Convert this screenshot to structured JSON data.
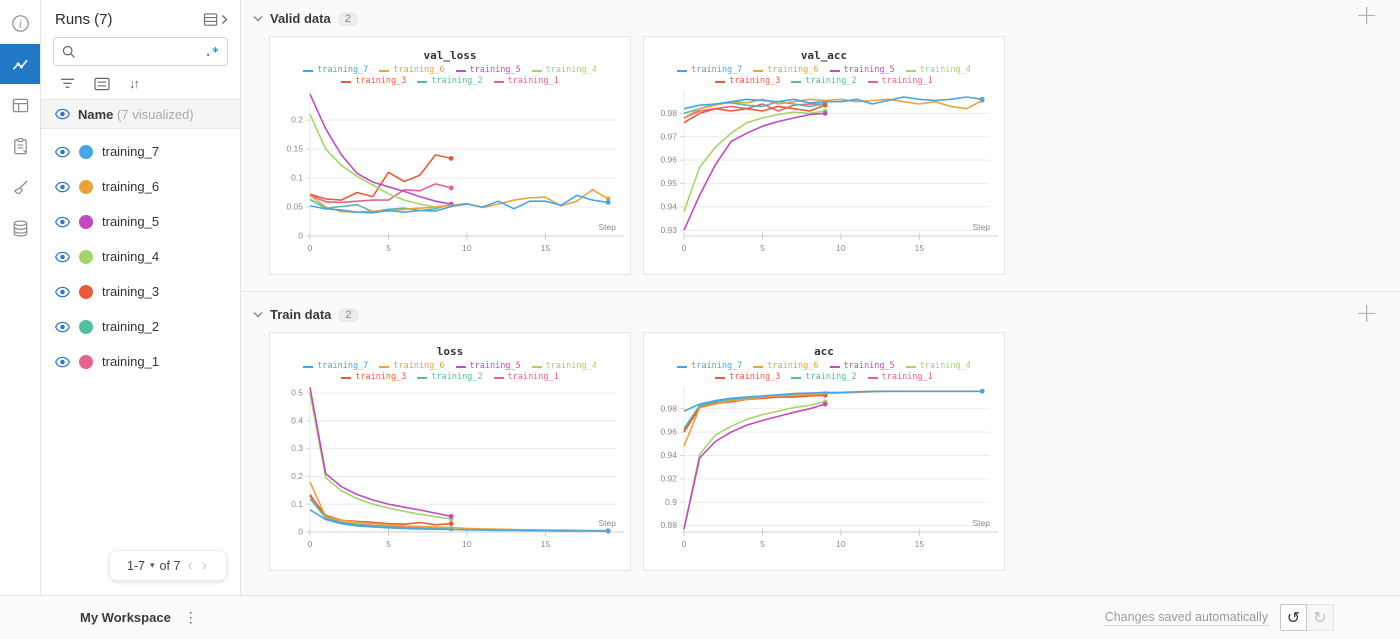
{
  "rail": {
    "items": [
      {
        "icon": "info-icon",
        "active": false
      },
      {
        "icon": "line-chart-icon",
        "active": true
      },
      {
        "icon": "table-panel-icon",
        "active": false
      },
      {
        "icon": "clipboard-icon",
        "active": false
      },
      {
        "icon": "broom-icon",
        "active": false
      },
      {
        "icon": "database-icon",
        "active": false
      }
    ]
  },
  "sidebar": {
    "title": "Runs (7)",
    "expand_icon": "runs-table-expand-icon",
    "search": {
      "value": "",
      "placeholder": "",
      "regex_label": ".*"
    },
    "toolbar_icons": [
      "filter-icon",
      "list-icon",
      "sort-icon"
    ],
    "sort_glyph": "↓↑",
    "header": {
      "name_label": "Name",
      "visualized_label": "(7 visualized)"
    },
    "runs": [
      {
        "name": "training_7",
        "color": "#48a5e3"
      },
      {
        "name": "training_6",
        "color": "#e9a33c"
      },
      {
        "name": "training_5",
        "color": "#c14bc1"
      },
      {
        "name": "training_4",
        "color": "#a3d56a"
      },
      {
        "name": "training_3",
        "color": "#e65c3c"
      },
      {
        "name": "training_2",
        "color": "#55bda2"
      },
      {
        "name": "training_1",
        "color": "#e6628d"
      }
    ],
    "pagination": {
      "range_label": "1-7",
      "caret_glyph": "▾",
      "of_label": "of 7",
      "prev_glyph": "‹",
      "next_glyph": "›"
    }
  },
  "sections": [
    {
      "title": "Valid data",
      "count": "2",
      "add_glyph": "+"
    },
    {
      "title": "Train data",
      "count": "2",
      "add_glyph": "+"
    }
  ],
  "footer": {
    "workspace_label": "My Workspace",
    "kebab_glyph": "⋮",
    "status_label": "Changes saved automatically",
    "undo_glyph": "↺",
    "redo_glyph": "↻"
  },
  "chart_data": [
    {
      "type": "line",
      "title": "val_loss",
      "xlabel": "Step",
      "xlim": [
        0,
        19.5
      ],
      "ylim": [
        0,
        0.252
      ],
      "xticks": [
        0,
        5,
        10,
        15
      ],
      "yticks": [
        0,
        0.05,
        0.1,
        0.15,
        0.2
      ],
      "grid": true,
      "legend_position": "top",
      "series": [
        {
          "name": "training_7",
          "color": "#48a5e3",
          "values": [
            0.052,
            0.047,
            0.045,
            0.041,
            0.04,
            0.044,
            0.041,
            0.044,
            0.043,
            0.051,
            0.055,
            0.05,
            0.06,
            0.047,
            0.06,
            0.06,
            0.053,
            0.07,
            0.062,
            0.058
          ]
        },
        {
          "name": "training_6",
          "color": "#e9a33c",
          "values": [
            0.07,
            0.05,
            0.042,
            0.041,
            0.043,
            0.043,
            0.046,
            0.048,
            0.05,
            0.053,
            0.056,
            0.049,
            0.055,
            0.062,
            0.066,
            0.067,
            0.052,
            0.06,
            0.08,
            0.064
          ]
        },
        {
          "name": "training_5",
          "color": "#c14bc1",
          "values": [
            0.245,
            0.185,
            0.14,
            0.108,
            0.093,
            0.085,
            0.077,
            0.068,
            0.06,
            0.055
          ]
        },
        {
          "name": "training_4",
          "color": "#a3d56a",
          "values": [
            0.21,
            0.15,
            0.122,
            0.103,
            0.088,
            0.073,
            0.062,
            0.055,
            0.05,
            0.053
          ]
        },
        {
          "name": "training_3",
          "color": "#e65c3c",
          "values": [
            0.072,
            0.064,
            0.062,
            0.075,
            0.068,
            0.11,
            0.094,
            0.105,
            0.14,
            0.134
          ]
        },
        {
          "name": "training_2",
          "color": "#55bda2",
          "values": [
            0.063,
            0.048,
            0.051,
            0.054,
            0.042,
            0.046,
            0.048,
            0.044,
            0.047,
            0.055
          ]
        },
        {
          "name": "training_1",
          "color": "#e6628d",
          "values": [
            0.07,
            0.059,
            0.058,
            0.06,
            0.062,
            0.062,
            0.08,
            0.078,
            0.09,
            0.083
          ]
        }
      ]
    },
    {
      "type": "line",
      "title": "val_acc",
      "xlabel": "Step",
      "xlim": [
        0,
        19.5
      ],
      "ylim": [
        0.9275,
        0.99
      ],
      "xticks": [
        0,
        5,
        10,
        15
      ],
      "yticks": [
        0.93,
        0.94,
        0.95,
        0.96,
        0.97,
        0.98
      ],
      "grid": true,
      "legend_position": "top",
      "series": [
        {
          "name": "training_7",
          "color": "#48a5e3",
          "values": [
            0.982,
            0.9835,
            0.984,
            0.985,
            0.986,
            0.9855,
            0.985,
            0.986,
            0.9845,
            0.985,
            0.985,
            0.986,
            0.984,
            0.9855,
            0.987,
            0.986,
            0.9855,
            0.986,
            0.987,
            0.986
          ]
        },
        {
          "name": "training_6",
          "color": "#e9a33c",
          "values": [
            0.978,
            0.982,
            0.9835,
            0.985,
            0.9845,
            0.986,
            0.984,
            0.985,
            0.986,
            0.9855,
            0.986,
            0.985,
            0.9855,
            0.986,
            0.985,
            0.984,
            0.985,
            0.983,
            0.982,
            0.9855
          ]
        },
        {
          "name": "training_5",
          "color": "#c14bc1",
          "values": [
            0.93,
            0.945,
            0.958,
            0.968,
            0.9715,
            0.9745,
            0.9765,
            0.978,
            0.9795,
            0.98
          ]
        },
        {
          "name": "training_4",
          "color": "#a3d56a",
          "values": [
            0.938,
            0.957,
            0.9655,
            0.9715,
            0.976,
            0.978,
            0.9795,
            0.9805,
            0.98,
            0.981
          ]
        },
        {
          "name": "training_3",
          "color": "#e65c3c",
          "values": [
            0.976,
            0.98,
            0.982,
            0.981,
            0.982,
            0.981,
            0.983,
            0.982,
            0.981,
            0.9835
          ]
        },
        {
          "name": "training_2",
          "color": "#55bda2",
          "values": [
            0.98,
            0.982,
            0.984,
            0.9845,
            0.9835,
            0.983,
            0.985,
            0.984,
            0.983,
            0.984
          ]
        },
        {
          "name": "training_1",
          "color": "#e6628d",
          "values": [
            0.978,
            0.981,
            0.982,
            0.983,
            0.982,
            0.984,
            0.981,
            0.9835,
            0.984,
            0.984
          ]
        }
      ]
    },
    {
      "type": "line",
      "title": "loss",
      "xlabel": "Step",
      "xlim": [
        0,
        19.5
      ],
      "ylim": [
        0,
        0.525
      ],
      "xticks": [
        0,
        5,
        10,
        15
      ],
      "yticks": [
        0,
        0.1,
        0.2,
        0.3,
        0.4,
        0.5
      ],
      "grid": true,
      "legend_position": "top",
      "series": [
        {
          "name": "training_7",
          "color": "#48a5e3",
          "values": [
            0.08,
            0.045,
            0.03,
            0.022,
            0.018,
            0.015,
            0.013,
            0.011,
            0.01,
            0.009,
            0.008,
            0.007,
            0.006,
            0.006,
            0.005,
            0.005,
            0.004,
            0.004,
            0.004,
            0.003
          ]
        },
        {
          "name": "training_6",
          "color": "#e9a33c",
          "values": [
            0.18,
            0.055,
            0.042,
            0.035,
            0.03,
            0.026,
            0.022,
            0.02,
            0.018,
            0.016,
            0.013,
            0.011,
            0.01,
            0.009,
            0.008,
            0.007,
            0.007,
            0.006,
            0.005,
            0.005
          ]
        },
        {
          "name": "training_5",
          "color": "#c14bc1",
          "values": [
            0.52,
            0.21,
            0.163,
            0.135,
            0.115,
            0.1,
            0.089,
            0.079,
            0.068,
            0.056
          ]
        },
        {
          "name": "training_4",
          "color": "#a3d56a",
          "values": [
            0.5,
            0.195,
            0.148,
            0.12,
            0.1,
            0.086,
            0.074,
            0.064,
            0.055,
            0.047
          ]
        },
        {
          "name": "training_3",
          "color": "#e65c3c",
          "values": [
            0.13,
            0.06,
            0.042,
            0.038,
            0.035,
            0.03,
            0.028,
            0.034,
            0.026,
            0.03
          ]
        },
        {
          "name": "training_2",
          "color": "#55bda2",
          "values": [
            0.12,
            0.05,
            0.033,
            0.026,
            0.021,
            0.018,
            0.015,
            0.014,
            0.013,
            0.012
          ]
        },
        {
          "name": "training_1",
          "color": "#e6628d",
          "values": [
            0.135,
            0.052,
            0.035,
            0.028,
            0.023,
            0.02,
            0.017,
            0.015,
            0.013,
            0.012
          ]
        }
      ]
    },
    {
      "type": "line",
      "title": "acc",
      "xlabel": "Step",
      "xlim": [
        0,
        19.5
      ],
      "ylim": [
        0.8745,
        0.9995
      ],
      "xticks": [
        0,
        5,
        10,
        15
      ],
      "yticks": [
        0.88,
        0.9,
        0.92,
        0.94,
        0.96,
        0.98
      ],
      "grid": true,
      "legend_position": "top",
      "series": [
        {
          "name": "training_7",
          "color": "#48a5e3",
          "values": [
            0.978,
            0.984,
            0.987,
            0.989,
            0.99,
            0.991,
            0.992,
            0.993,
            0.9935,
            0.994,
            0.994,
            0.9945,
            0.995,
            0.995,
            0.995,
            0.995,
            0.995,
            0.995,
            0.995,
            0.995
          ]
        },
        {
          "name": "training_6",
          "color": "#e9a33c",
          "values": [
            0.948,
            0.981,
            0.984,
            0.987,
            0.988,
            0.99,
            0.991,
            0.9915,
            0.992,
            0.993,
            0.9935,
            0.994,
            0.9945,
            0.995,
            0.995,
            0.995,
            0.995,
            0.995,
            0.995,
            0.995
          ]
        },
        {
          "name": "training_5",
          "color": "#c14bc1",
          "values": [
            0.877,
            0.938,
            0.952,
            0.96,
            0.966,
            0.97,
            0.9735,
            0.977,
            0.98,
            0.984
          ]
        },
        {
          "name": "training_4",
          "color": "#a3d56a",
          "values": [
            0.877,
            0.941,
            0.9575,
            0.965,
            0.971,
            0.975,
            0.978,
            0.981,
            0.983,
            0.986
          ]
        },
        {
          "name": "training_3",
          "color": "#e65c3c",
          "values": [
            0.96,
            0.981,
            0.9845,
            0.986,
            0.988,
            0.989,
            0.99,
            0.99,
            0.991,
            0.9915
          ]
        },
        {
          "name": "training_2",
          "color": "#55bda2",
          "values": [
            0.963,
            0.983,
            0.986,
            0.988,
            0.9895,
            0.9905,
            0.9915,
            0.992,
            0.9925,
            0.993
          ]
        },
        {
          "name": "training_1",
          "color": "#e6628d",
          "values": [
            0.962,
            0.982,
            0.9855,
            0.9875,
            0.989,
            0.99,
            0.991,
            0.9915,
            0.992,
            0.9925
          ]
        }
      ]
    }
  ]
}
